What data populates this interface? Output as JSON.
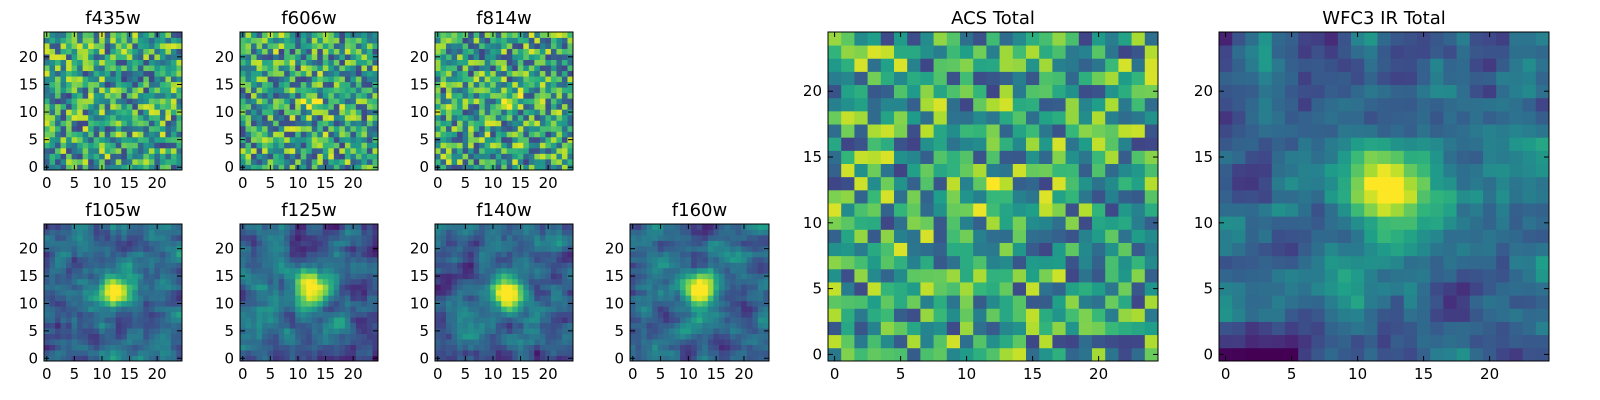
{
  "chart_data": [
    {
      "type": "heatmap",
      "title": "f435w",
      "xlim": [
        0,
        24
      ],
      "ylim": [
        0,
        24
      ],
      "xticks": [
        0,
        5,
        10,
        15,
        20
      ],
      "yticks": [
        0,
        5,
        10,
        15,
        20
      ],
      "colormap": "viridis",
      "source_peak": [
        null,
        null
      ],
      "pattern": "noise",
      "seed": 11
    },
    {
      "type": "heatmap",
      "title": "f606w",
      "xlim": [
        0,
        24
      ],
      "ylim": [
        0,
        24
      ],
      "xticks": [
        0,
        5,
        10,
        15,
        20
      ],
      "yticks": [
        0,
        5,
        10,
        15,
        20
      ],
      "colormap": "viridis",
      "source_peak": [
        12.5,
        11.5
      ],
      "pattern": "noise+weak-source",
      "seed": 23
    },
    {
      "type": "heatmap",
      "title": "f814w",
      "xlim": [
        0,
        24
      ],
      "ylim": [
        0,
        24
      ],
      "xticks": [
        0,
        5,
        10,
        15,
        20
      ],
      "yticks": [
        0,
        5,
        10,
        15,
        20
      ],
      "colormap": "viridis",
      "source_peak": [
        13,
        12
      ],
      "pattern": "noise+weak-source",
      "seed": 37
    },
    {
      "type": "heatmap",
      "title": "f105w",
      "xlim": [
        0,
        24
      ],
      "ylim": [
        0,
        24
      ],
      "xticks": [
        0,
        5,
        10,
        15,
        20
      ],
      "yticks": [
        0,
        5,
        10,
        15,
        20
      ],
      "colormap": "viridis",
      "source_peak": [
        12.5,
        12.5
      ],
      "pattern": "smooth+source",
      "seed": 41
    },
    {
      "type": "heatmap",
      "title": "f125w",
      "xlim": [
        0,
        24
      ],
      "ylim": [
        0,
        24
      ],
      "xticks": [
        0,
        5,
        10,
        15,
        20
      ],
      "yticks": [
        0,
        5,
        10,
        15,
        20
      ],
      "colormap": "viridis",
      "source_peak": [
        12.5,
        12.5
      ],
      "pattern": "smooth+source",
      "seed": 53
    },
    {
      "type": "heatmap",
      "title": "f140w",
      "xlim": [
        0,
        24
      ],
      "ylim": [
        0,
        24
      ],
      "xticks": [
        0,
        5,
        10,
        15,
        20
      ],
      "yticks": [
        0,
        5,
        10,
        15,
        20
      ],
      "colormap": "viridis",
      "source_peak": [
        12.5,
        12
      ],
      "pattern": "smooth+source",
      "seed": 67
    },
    {
      "type": "heatmap",
      "title": "f160w",
      "xlim": [
        0,
        24
      ],
      "ylim": [
        0,
        24
      ],
      "xticks": [
        0,
        5,
        10,
        15,
        20
      ],
      "yticks": [
        0,
        5,
        10,
        15,
        20
      ],
      "colormap": "viridis",
      "source_peak": [
        12.5,
        12.5
      ],
      "pattern": "smooth+source",
      "seed": 71
    },
    {
      "type": "heatmap",
      "title": "ACS Total",
      "xlim": [
        0,
        24
      ],
      "ylim": [
        0,
        24
      ],
      "xticks": [
        0,
        5,
        10,
        15,
        20
      ],
      "yticks": [
        0,
        5,
        10,
        15,
        20
      ],
      "colormap": "viridis",
      "source_peak": [
        12.5,
        11.5
      ],
      "pattern": "noise+weak-source",
      "seed": 83
    },
    {
      "type": "heatmap",
      "title": "WFC3 IR Total",
      "xlim": [
        0,
        24
      ],
      "ylim": [
        0,
        24
      ],
      "xticks": [
        0,
        5,
        10,
        15,
        20
      ],
      "yticks": [
        0,
        5,
        10,
        15,
        20
      ],
      "colormap": "viridis",
      "source_peak": [
        12.5,
        12.5
      ],
      "pattern": "smooth+source",
      "seed": 97
    }
  ],
  "colors": {
    "viridis_low": "#440154",
    "viridis_mid": "#21918c",
    "viridis_high": "#fde725",
    "axis": "#000000"
  }
}
